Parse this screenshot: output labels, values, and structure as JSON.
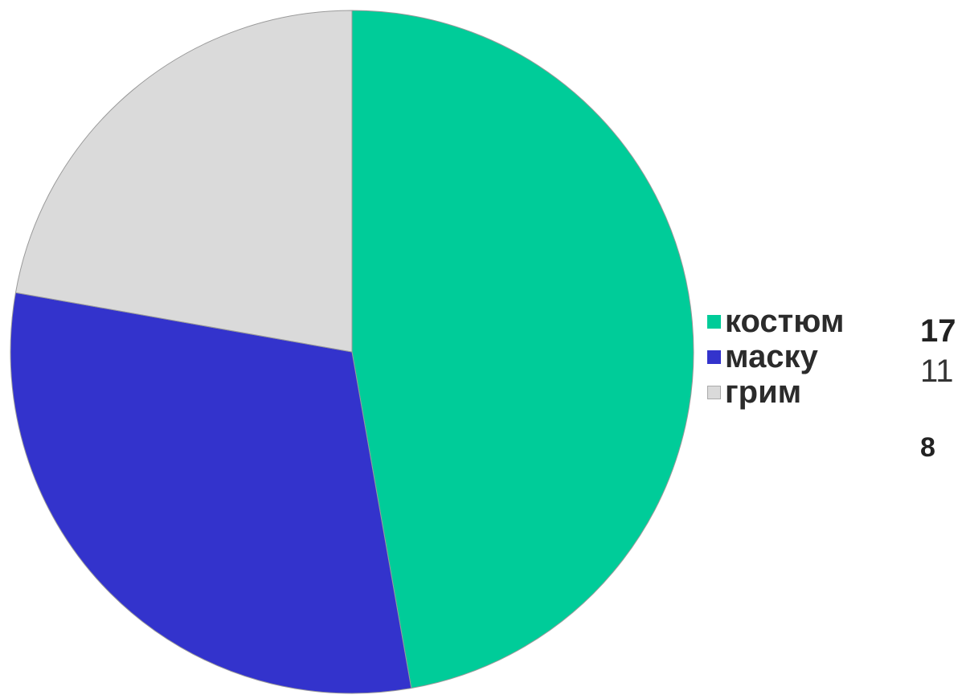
{
  "chart_data": {
    "type": "pie",
    "categories": [
      "костюм",
      "маску",
      "грим"
    ],
    "values": [
      17,
      11,
      8
    ],
    "colors": [
      "#00cc99",
      "#3333cc",
      "#dadada"
    ],
    "legend_position": "right",
    "value_labels": [
      "17",
      "11",
      "8"
    ]
  }
}
